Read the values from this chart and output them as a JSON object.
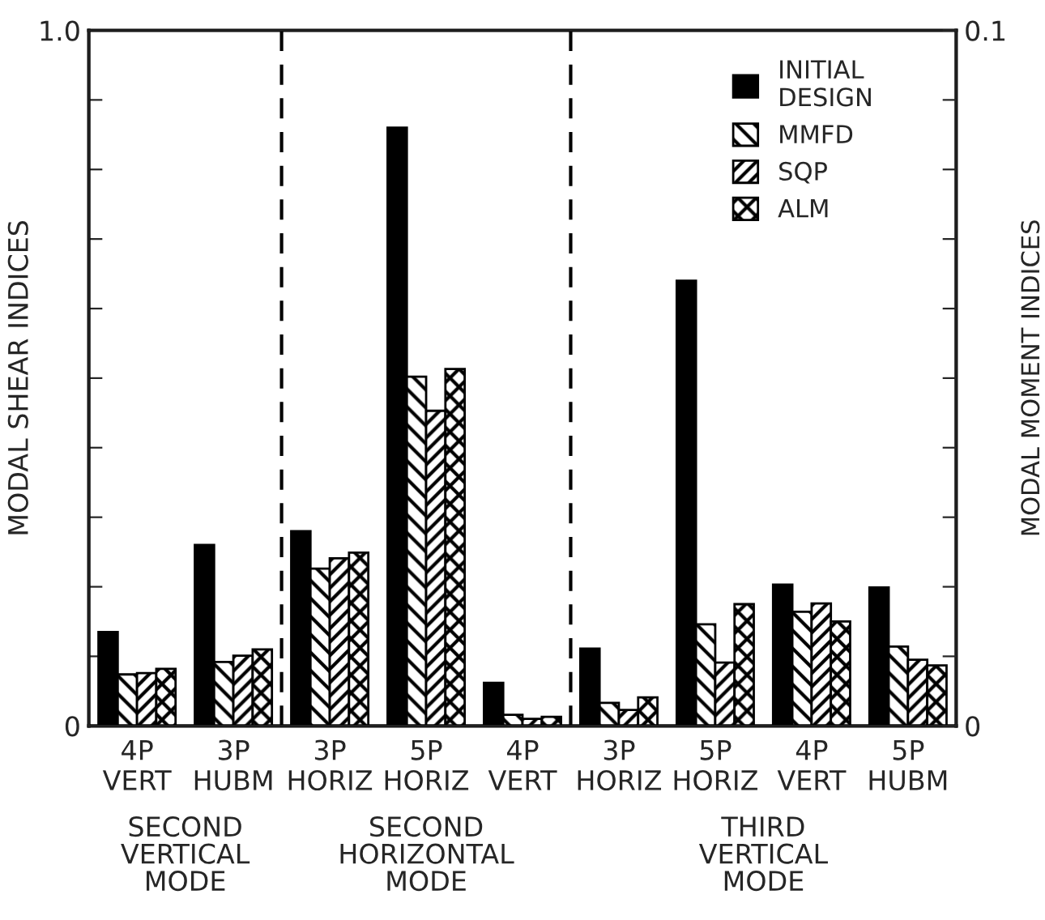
{
  "chart_data": {
    "type": "bar",
    "ylabel": "MODAL SHEAR INDICES",
    "y2label": "MODAL MOMENT INDICES",
    "categories": [
      "4P\nVERT",
      "3P\nHUBM",
      "3P\nHORIZ",
      "5P\nHORIZ",
      "4P\nVERT",
      "3P\nHORIZ",
      "5P\nHORIZ",
      "4P\nVERT",
      "5P\nHUBM"
    ],
    "series": [
      {
        "name": "INITIAL\nDESIGN",
        "color": "#000000",
        "values": [
          0.135,
          0.26,
          0.28,
          0.86,
          0.062,
          0.111,
          0.64,
          0.203,
          0.199
        ]
      },
      {
        "name": "MMFD",
        "color": "#000000",
        "values": [
          0.074,
          0.092,
          0.226,
          0.502,
          0.016,
          0.033,
          0.146,
          0.164,
          0.114
        ]
      },
      {
        "name": "SQP",
        "color": "#000000",
        "values": [
          0.076,
          0.101,
          0.241,
          0.453,
          0.01,
          0.023,
          0.091,
          0.176,
          0.095
        ]
      },
      {
        "name": "ALM",
        "color": "#000000",
        "values": [
          0.082,
          0.11,
          0.249,
          0.513,
          0.013,
          0.041,
          0.175,
          0.15,
          0.087
        ]
      }
    ],
    "ylim": [
      0,
      1.0
    ],
    "yticks": [
      0,
      {
        "value": 0.1,
        "label": null
      },
      {
        "value": 0.2,
        "label": null
      },
      {
        "value": 0.3,
        "label": null
      },
      {
        "value": 0.4,
        "label": null
      },
      {
        "value": 0.5,
        "label": null
      },
      {
        "value": 0.6,
        "label": null
      },
      {
        "value": 0.7,
        "label": null
      },
      {
        "value": 0.8,
        "label": null
      },
      {
        "value": 0.9,
        "label": null
      },
      {
        "value": 1.0,
        "label": "1.0"
      }
    ],
    "y2lim": [
      0,
      0.1
    ],
    "y2ticks": [
      0,
      {
        "value": 0.01,
        "label": null
      },
      {
        "value": 0.02,
        "label": null
      },
      {
        "value": 0.03,
        "label": null
      },
      {
        "value": 0.04,
        "label": null
      },
      {
        "value": 0.05,
        "label": null
      },
      {
        "value": 0.06,
        "label": null
      },
      {
        "value": 0.07,
        "label": null
      },
      {
        "value": 0.08,
        "label": null
      },
      {
        "value": 0.09,
        "label": null
      },
      0.1
    ],
    "annotations": [
      "SECOND\nVERTICAL\nMODE",
      "SECOND\nHORIZONTAL\nMODE",
      "THIRD\nVERTICAL\nMODE"
    ],
    "legend": "top right",
    "grid": false
  }
}
